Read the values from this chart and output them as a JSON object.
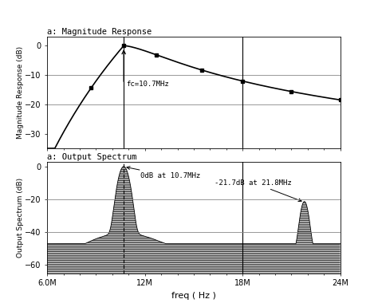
{
  "title1": "a: Magnitude Response",
  "title2": "a: Output Spectrum",
  "xlabel": "freq ( Hz )",
  "ylabel1": "Magnitude Response (dB)",
  "ylabel2": "Output Spectrum (dB)",
  "fc": 10700000.0,
  "fc_label": "fc=10.7MHz",
  "ann1_label": "0dB at 10.7MHz",
  "ann2_label": "-21.7dB at 21.8MHz",
  "xmin": 6000000.0,
  "xmax": 24000000.0,
  "xticks": [
    6000000.0,
    12000000.0,
    18000000.0,
    24000000.0
  ],
  "xtick_labels": [
    "6.0M",
    "12M",
    "18M",
    "24M"
  ],
  "plot1_ylim": [
    -35,
    3
  ],
  "plot1_yticks": [
    0.0,
    -10,
    -20,
    -30
  ],
  "plot2_ylim": [
    -65,
    3
  ],
  "plot2_yticks": [
    0.0,
    -20,
    -40,
    -60
  ],
  "plot1_hlines": [
    -10,
    -20
  ],
  "plot2_hlines": [
    -20,
    -40
  ],
  "background_color": "#ffffff",
  "line_color": "#000000",
  "grid_color": "#888888",
  "marker_style": "s",
  "marker_size": 3,
  "second_peak_freq": 21800000.0,
  "second_peak_db": -21.7,
  "vline1": 10700000.0,
  "vline2": 18000000.0,
  "marker_freqs": [
    8700000.0,
    10700000.0,
    12700000.0,
    15500000.0,
    18000000.0,
    21000000.0,
    24000000.0
  ]
}
